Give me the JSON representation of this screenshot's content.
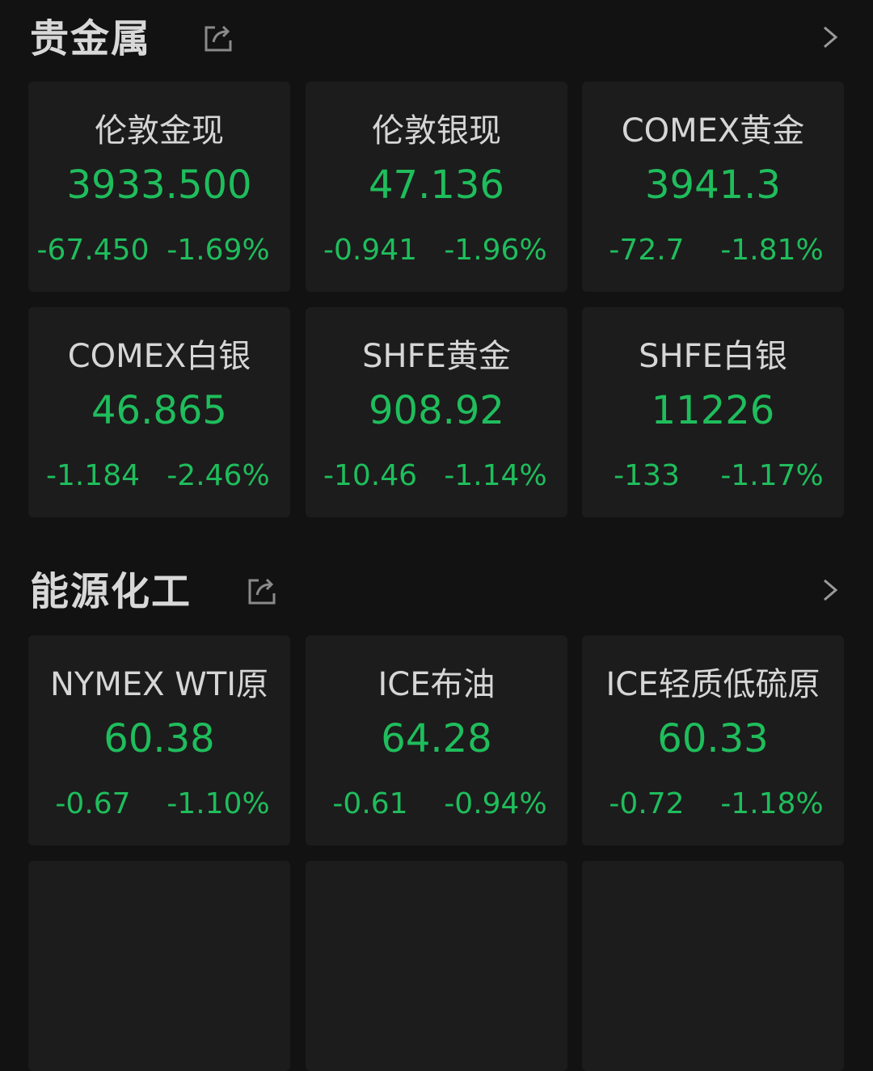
{
  "sections": [
    {
      "title": "贵金属",
      "share_icon": "share-icon",
      "more_icon": "chevron-right-icon",
      "items": [
        {
          "name": "伦敦金现",
          "price": "3933.500",
          "change": "-67.450",
          "pct": "-1.69%"
        },
        {
          "name": "伦敦银现",
          "price": "47.136",
          "change": "-0.941",
          "pct": "-1.96%"
        },
        {
          "name": "COMEX黄金",
          "price": "3941.3",
          "change": "-72.7",
          "pct": "-1.81%"
        },
        {
          "name": "COMEX白银",
          "price": "46.865",
          "change": "-1.184",
          "pct": "-2.46%"
        },
        {
          "name": "SHFE黄金",
          "price": "908.92",
          "change": "-10.46",
          "pct": "-1.14%"
        },
        {
          "name": "SHFE白银",
          "price": "11226",
          "change": "-133",
          "pct": "-1.17%"
        }
      ]
    },
    {
      "title": "能源化工",
      "share_icon": "share-icon",
      "more_icon": "chevron-right-icon",
      "items": [
        {
          "name": "NYMEX WTI原",
          "price": "60.38",
          "change": "-0.67",
          "pct": "-1.10%"
        },
        {
          "name": "ICE布油",
          "price": "64.28",
          "change": "-0.61",
          "pct": "-0.94%"
        },
        {
          "name": "ICE轻质低硫原",
          "price": "60.33",
          "change": "-0.72",
          "pct": "-1.18%"
        }
      ]
    }
  ],
  "colors": {
    "down": "#1fbd5c",
    "background": "#121212",
    "card": "#1c1c1c"
  }
}
